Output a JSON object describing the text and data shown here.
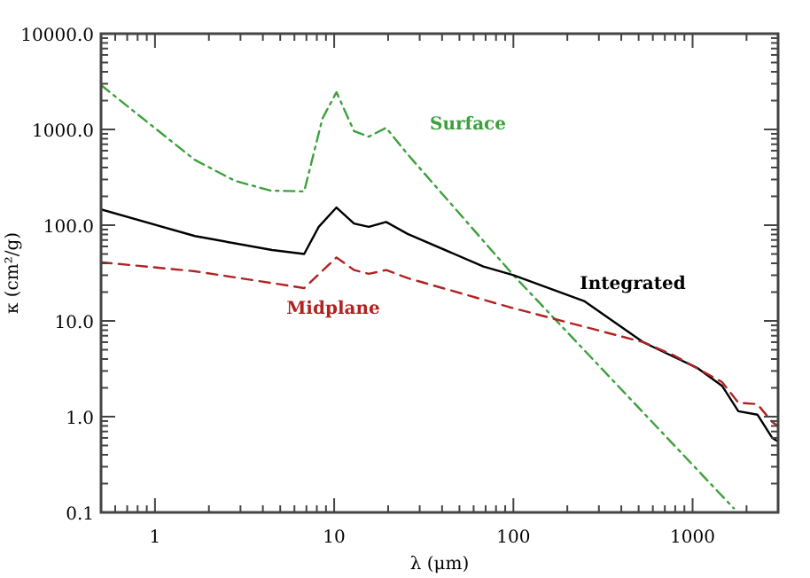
{
  "chart_data": {
    "type": "line",
    "xlabel": "λ (μm)",
    "ylabel": "κ (cm²/g)",
    "log": "xy",
    "xlim": [
      0.5,
      3000
    ],
    "ylim": [
      0.1,
      10000
    ],
    "xticks": [
      {
        "value": 0.6,
        "label": null
      },
      {
        "value": 0.7,
        "label": null
      },
      {
        "value": 0.8,
        "label": null
      },
      {
        "value": 0.9,
        "label": null
      },
      1,
      {
        "value": 2,
        "label": null
      },
      {
        "value": 3,
        "label": null
      },
      {
        "value": 4,
        "label": null
      },
      {
        "value": 5,
        "label": null
      },
      {
        "value": 6,
        "label": null
      },
      {
        "value": 7,
        "label": null
      },
      {
        "value": 8,
        "label": null
      },
      {
        "value": 9,
        "label": null
      },
      10,
      {
        "value": 20,
        "label": null
      },
      {
        "value": 30,
        "label": null
      },
      {
        "value": 40,
        "label": null
      },
      {
        "value": 50,
        "label": null
      },
      {
        "value": 60,
        "label": null
      },
      {
        "value": 70,
        "label": null
      },
      {
        "value": 80,
        "label": null
      },
      {
        "value": 90,
        "label": null
      },
      100,
      {
        "value": 200,
        "label": null
      },
      {
        "value": 300,
        "label": null
      },
      {
        "value": 400,
        "label": null
      },
      {
        "value": 500,
        "label": null
      },
      {
        "value": 600,
        "label": null
      },
      {
        "value": 700,
        "label": null
      },
      {
        "value": 800,
        "label": null
      },
      {
        "value": 900,
        "label": null
      },
      1000,
      {
        "value": 2000,
        "label": null
      }
    ],
    "yticks": [
      {
        "value": 0.1,
        "label": "0.1"
      },
      {
        "value": 0.2,
        "label": null
      },
      {
        "value": 0.3,
        "label": null
      },
      {
        "value": 0.4,
        "label": null
      },
      {
        "value": 0.5,
        "label": null
      },
      {
        "value": 0.6,
        "label": null
      },
      {
        "value": 0.7,
        "label": null
      },
      {
        "value": 0.8,
        "label": null
      },
      {
        "value": 0.9,
        "label": null
      },
      {
        "value": 1,
        "label": "1.0"
      },
      {
        "value": 2,
        "label": null
      },
      {
        "value": 3,
        "label": null
      },
      {
        "value": 4,
        "label": null
      },
      {
        "value": 5,
        "label": null
      },
      {
        "value": 6,
        "label": null
      },
      {
        "value": 7,
        "label": null
      },
      {
        "value": 8,
        "label": null
      },
      {
        "value": 9,
        "label": null
      },
      {
        "value": 10,
        "label": "10.0"
      },
      {
        "value": 20,
        "label": null
      },
      {
        "value": 30,
        "label": null
      },
      {
        "value": 40,
        "label": null
      },
      {
        "value": 50,
        "label": null
      },
      {
        "value": 60,
        "label": null
      },
      {
        "value": 70,
        "label": null
      },
      {
        "value": 80,
        "label": null
      },
      {
        "value": 90,
        "label": null
      },
      {
        "value": 100,
        "label": "100.0"
      },
      {
        "value": 200,
        "label": null
      },
      {
        "value": 300,
        "label": null
      },
      {
        "value": 400,
        "label": null
      },
      {
        "value": 500,
        "label": null
      },
      {
        "value": 600,
        "label": null
      },
      {
        "value": 700,
        "label": null
      },
      {
        "value": 800,
        "label": null
      },
      {
        "value": 900,
        "label": null
      },
      {
        "value": 1000,
        "label": "1000.0"
      },
      {
        "value": 2000,
        "label": null
      },
      {
        "value": 3000,
        "label": null
      },
      {
        "value": 4000,
        "label": null
      },
      {
        "value": 5000,
        "label": null
      },
      {
        "value": 6000,
        "label": null
      },
      {
        "value": 7000,
        "label": null
      },
      {
        "value": 8000,
        "label": null
      },
      {
        "value": 9000,
        "label": null
      },
      {
        "value": 10000,
        "label": "10000.0"
      }
    ],
    "grid": false,
    "marker": "none",
    "series": [
      {
        "name": "Surface",
        "color": "#3ca03c",
        "line_style": "dashdot",
        "x": [
          0.5,
          1.67,
          2.8,
          4.4,
          6.8,
          8.6,
          10.3,
          12.9,
          15.6,
          19.5,
          25.7,
          100,
          1700
        ],
        "values": [
          2900,
          480,
          290,
          230,
          225,
          1300,
          2450,
          960,
          840,
          1040,
          550,
          30,
          0.11
        ]
      },
      {
        "name": "Integrated",
        "color": "#000000",
        "line_style": "solid",
        "x": [
          0.5,
          1.67,
          4.5,
          6.8,
          8.2,
          10.3,
          12.9,
          15.6,
          19.5,
          25.7,
          68,
          100,
          250,
          530,
          1070,
          1460,
          1800,
          2300,
          2780,
          3000
        ],
        "values": [
          146,
          77,
          55,
          50,
          96,
          153,
          104,
          96,
          108,
          81,
          37,
          30,
          16,
          6,
          3.2,
          2.1,
          1.14,
          1.05,
          0.6,
          0.55
        ]
      },
      {
        "name": "Midplane",
        "color": "#b22222",
        "line_style": "dashed",
        "x": [
          0.5,
          1.67,
          4.4,
          6.8,
          10.3,
          12.9,
          15.6,
          19.5,
          25.7,
          94,
          530,
          780,
          1460,
          1800,
          2300,
          2780,
          3000
        ],
        "values": [
          41,
          33,
          25,
          22,
          46,
          34,
          31,
          34,
          28,
          14,
          6,
          4.4,
          2.3,
          1.4,
          1.35,
          0.88,
          0.8
        ]
      }
    ]
  }
}
